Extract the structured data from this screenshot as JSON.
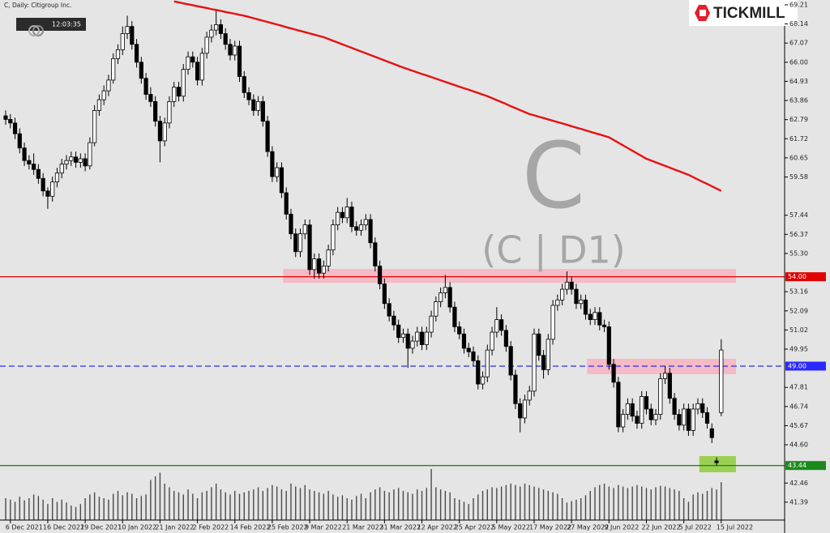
{
  "header": {
    "symbol_line": "C, Daily:  Citigroup Inc.",
    "clock": "12:03:35",
    "logo": "TICKMILL"
  },
  "watermark": {
    "symbol": "C",
    "timeframe": "(C | D1)"
  },
  "chart_data": {
    "type": "candlestick",
    "categories": [
      null,
      "6 Dec 2021",
      null,
      null,
      null,
      null,
      null,
      null,
      null,
      "16 Dec 2021",
      null,
      null,
      null,
      null,
      null,
      null,
      null,
      "29 Dec 2021",
      null,
      null,
      null,
      null,
      null,
      null,
      null,
      "10 Jan 2022",
      null,
      null,
      null,
      null,
      null,
      null,
      null,
      "21 Jan 2022",
      null,
      null,
      null,
      null,
      null,
      null,
      null,
      "2 Feb 2022",
      null,
      null,
      null,
      null,
      null,
      null,
      null,
      "14 Feb 2022",
      null,
      null,
      null,
      null,
      null,
      null,
      null,
      "25 Feb 2022",
      null,
      null,
      null,
      null,
      null,
      null,
      null,
      "9 Mar 2022",
      null,
      null,
      null,
      null,
      null,
      null,
      null,
      "21 Mar 2022",
      null,
      null,
      null,
      null,
      null,
      null,
      null,
      "31 Mar 2022",
      null,
      null,
      null,
      null,
      null,
      null,
      null,
      "12 Apr 2022",
      null,
      null,
      null,
      null,
      null,
      null,
      null,
      "25 Apr 2022",
      null,
      null,
      null,
      null,
      null,
      null,
      null,
      "5 May 2022",
      null,
      null,
      null,
      null,
      null,
      null,
      null,
      "17 May 2022",
      null,
      null,
      null,
      null,
      null,
      null,
      null,
      "27 May 2022",
      null,
      null,
      null,
      null,
      null,
      null,
      null,
      "9 Jun 2022",
      null,
      null,
      null,
      null,
      null,
      null,
      null,
      "22 Jun 2022",
      null,
      null,
      null,
      null,
      null,
      null,
      null,
      "5 Jul 2022",
      null,
      null,
      null,
      null,
      null,
      null,
      null,
      "15 Jul 2022"
    ],
    "candles": [
      [
        63.0,
        63.3,
        62.5,
        62.8
      ],
      [
        62.8,
        63.1,
        62.3,
        62.6
      ],
      [
        62.6,
        62.9,
        61.7,
        62.0
      ],
      [
        62.0,
        62.3,
        60.9,
        61.2
      ],
      [
        61.2,
        61.5,
        60.2,
        60.5
      ],
      [
        60.5,
        60.8,
        60.0,
        60.3
      ],
      [
        60.3,
        60.9,
        59.7,
        60.0
      ],
      [
        60.0,
        60.3,
        59.2,
        59.5
      ],
      [
        59.5,
        59.8,
        58.5,
        58.8
      ],
      [
        58.8,
        59.0,
        57.8,
        58.5
      ],
      [
        58.5,
        59.6,
        58.2,
        59.3
      ],
      [
        59.3,
        60.1,
        59.0,
        59.8
      ],
      [
        59.8,
        60.6,
        59.5,
        60.3
      ],
      [
        60.3,
        60.8,
        60.0,
        60.5
      ],
      [
        60.5,
        61.0,
        60.2,
        60.7
      ],
      [
        60.7,
        61.0,
        60.1,
        60.4
      ],
      [
        60.4,
        60.9,
        60.1,
        60.6
      ],
      [
        60.6,
        60.9,
        59.9,
        60.2
      ],
      [
        60.2,
        61.8,
        60.0,
        61.5
      ],
      [
        61.5,
        63.6,
        61.3,
        63.3
      ],
      [
        63.3,
        64.2,
        63.0,
        63.9
      ],
      [
        63.9,
        64.7,
        63.6,
        64.4
      ],
      [
        64.4,
        65.3,
        64.1,
        65.0
      ],
      [
        65.0,
        66.5,
        64.8,
        66.2
      ],
      [
        66.2,
        67.0,
        65.9,
        66.7
      ],
      [
        66.7,
        68.0,
        66.4,
        67.6
      ],
      [
        67.6,
        68.6,
        67.3,
        68.0
      ],
      [
        68.0,
        68.3,
        66.7,
        67.0
      ],
      [
        67.0,
        67.3,
        65.7,
        66.0
      ],
      [
        66.0,
        66.3,
        64.8,
        65.1
      ],
      [
        65.1,
        65.4,
        63.9,
        64.2
      ],
      [
        64.2,
        64.6,
        63.5,
        63.8
      ],
      [
        63.8,
        64.1,
        62.4,
        62.7
      ],
      [
        62.7,
        63.0,
        60.4,
        61.6
      ],
      [
        61.6,
        62.9,
        61.3,
        62.6
      ],
      [
        62.6,
        64.1,
        62.3,
        63.8
      ],
      [
        63.8,
        64.9,
        63.5,
        64.6
      ],
      [
        64.6,
        64.9,
        63.8,
        64.1
      ],
      [
        64.1,
        65.9,
        63.8,
        65.6
      ],
      [
        65.6,
        66.6,
        65.3,
        66.3
      ],
      [
        66.3,
        66.6,
        65.7,
        66.0
      ],
      [
        66.0,
        66.3,
        64.7,
        65.0
      ],
      [
        65.0,
        66.8,
        64.7,
        66.5
      ],
      [
        66.5,
        67.7,
        66.2,
        67.4
      ],
      [
        67.4,
        68.1,
        67.1,
        67.8
      ],
      [
        67.8,
        68.9,
        67.5,
        68.1
      ],
      [
        68.1,
        68.4,
        67.3,
        67.6
      ],
      [
        67.6,
        67.9,
        66.7,
        67.0
      ],
      [
        67.0,
        67.3,
        66.1,
        66.4
      ],
      [
        66.4,
        67.2,
        66.1,
        66.9
      ],
      [
        66.9,
        67.2,
        64.9,
        65.2
      ],
      [
        65.2,
        65.5,
        64.0,
        64.3
      ],
      [
        64.3,
        64.6,
        63.6,
        63.9
      ],
      [
        63.9,
        64.2,
        63.0,
        63.3
      ],
      [
        63.3,
        64.1,
        63.0,
        63.8
      ],
      [
        63.8,
        64.1,
        62.4,
        62.7
      ],
      [
        62.7,
        63.0,
        60.7,
        61.0
      ],
      [
        61.0,
        61.3,
        59.3,
        59.6
      ],
      [
        59.6,
        60.4,
        59.3,
        60.1
      ],
      [
        60.1,
        60.4,
        58.4,
        58.7
      ],
      [
        58.7,
        59.0,
        57.2,
        57.5
      ],
      [
        57.5,
        57.8,
        56.1,
        56.4
      ],
      [
        56.4,
        56.7,
        55.1,
        55.4
      ],
      [
        55.4,
        56.7,
        55.1,
        56.4
      ],
      [
        56.4,
        57.2,
        56.1,
        56.9
      ],
      [
        56.9,
        57.2,
        54.1,
        54.4
      ],
      [
        54.4,
        55.3,
        53.9,
        55.0
      ],
      [
        55.0,
        55.3,
        53.9,
        54.2
      ],
      [
        54.2,
        54.9,
        53.9,
        54.6
      ],
      [
        54.6,
        55.8,
        54.3,
        55.5
      ],
      [
        55.5,
        57.2,
        55.2,
        56.9
      ],
      [
        56.9,
        57.9,
        56.6,
        57.6
      ],
      [
        57.6,
        57.9,
        57.0,
        57.3
      ],
      [
        57.3,
        58.4,
        57.0,
        57.9
      ],
      [
        57.9,
        58.2,
        56.5,
        56.8
      ],
      [
        56.8,
        57.1,
        56.3,
        56.6
      ],
      [
        56.6,
        57.2,
        56.3,
        56.9
      ],
      [
        56.9,
        57.5,
        56.6,
        57.2
      ],
      [
        57.2,
        57.5,
        55.6,
        55.9
      ],
      [
        55.9,
        56.2,
        54.3,
        54.6
      ],
      [
        54.6,
        54.9,
        53.3,
        53.6
      ],
      [
        53.6,
        53.9,
        52.2,
        52.5
      ],
      [
        52.5,
        52.8,
        51.5,
        51.8
      ],
      [
        51.8,
        52.1,
        51.0,
        51.3
      ],
      [
        51.3,
        51.6,
        50.3,
        50.6
      ],
      [
        50.6,
        51.1,
        50.3,
        50.8
      ],
      [
        50.8,
        51.1,
        48.9,
        50.0
      ],
      [
        50.0,
        50.7,
        49.7,
        50.4
      ],
      [
        50.4,
        51.2,
        50.1,
        50.9
      ],
      [
        50.9,
        51.2,
        49.9,
        50.2
      ],
      [
        50.2,
        51.2,
        49.9,
        50.9
      ],
      [
        50.9,
        52.1,
        50.6,
        51.8
      ],
      [
        51.8,
        52.9,
        51.5,
        52.6
      ],
      [
        52.6,
        53.4,
        52.3,
        53.1
      ],
      [
        53.1,
        54.1,
        52.8,
        53.4
      ],
      [
        53.4,
        53.7,
        52.0,
        52.3
      ],
      [
        52.3,
        52.6,
        50.9,
        51.2
      ],
      [
        51.2,
        51.5,
        50.5,
        50.8
      ],
      [
        50.8,
        51.1,
        49.7,
        50.0
      ],
      [
        50.0,
        50.3,
        49.5,
        49.8
      ],
      [
        49.8,
        50.1,
        49.0,
        49.3
      ],
      [
        49.3,
        49.6,
        47.7,
        48.0
      ],
      [
        48.0,
        48.7,
        47.7,
        48.4
      ],
      [
        48.4,
        50.2,
        48.1,
        49.9
      ],
      [
        49.9,
        51.2,
        49.6,
        50.9
      ],
      [
        50.9,
        52.3,
        50.6,
        51.6
      ],
      [
        51.6,
        51.9,
        50.7,
        51.0
      ],
      [
        51.0,
        51.3,
        49.8,
        50.1
      ],
      [
        50.1,
        50.4,
        48.2,
        48.5
      ],
      [
        48.5,
        48.8,
        46.6,
        46.9
      ],
      [
        46.9,
        47.2,
        45.3,
        46.1
      ],
      [
        46.1,
        47.4,
        45.8,
        47.1
      ],
      [
        47.1,
        47.9,
        46.8,
        47.6
      ],
      [
        47.6,
        51.1,
        47.3,
        50.8
      ],
      [
        50.8,
        51.1,
        49.3,
        49.6
      ],
      [
        49.6,
        49.9,
        48.3,
        48.8
      ],
      [
        48.8,
        50.8,
        48.5,
        50.5
      ],
      [
        50.5,
        52.7,
        50.2,
        52.4
      ],
      [
        52.4,
        53.0,
        52.1,
        52.7
      ],
      [
        52.7,
        53.6,
        52.4,
        53.3
      ],
      [
        53.3,
        54.3,
        53.0,
        53.7
      ],
      [
        53.7,
        54.0,
        53.0,
        53.3
      ],
      [
        53.3,
        53.6,
        52.2,
        52.5
      ],
      [
        52.5,
        53.0,
        52.2,
        52.7
      ],
      [
        52.7,
        53.0,
        51.6,
        51.9
      ],
      [
        51.9,
        52.2,
        51.3,
        51.6
      ],
      [
        51.6,
        52.3,
        51.3,
        52.0
      ],
      [
        52.0,
        52.3,
        51.0,
        51.3
      ],
      [
        51.3,
        51.6,
        50.9,
        51.2
      ],
      [
        51.2,
        51.5,
        48.8,
        49.1
      ],
      [
        49.1,
        49.4,
        47.8,
        48.1
      ],
      [
        48.1,
        48.4,
        45.3,
        45.6
      ],
      [
        45.6,
        46.6,
        45.3,
        46.3
      ],
      [
        46.3,
        47.2,
        46.0,
        46.9
      ],
      [
        46.9,
        47.2,
        45.9,
        46.2
      ],
      [
        46.2,
        46.5,
        45.5,
        45.8
      ],
      [
        45.8,
        47.6,
        45.5,
        47.3
      ],
      [
        47.3,
        47.6,
        46.3,
        46.6
      ],
      [
        46.6,
        46.9,
        45.7,
        46.0
      ],
      [
        46.0,
        46.6,
        45.7,
        46.3
      ],
      [
        46.3,
        48.6,
        46.0,
        48.3
      ],
      [
        48.3,
        49.0,
        48.0,
        48.6
      ],
      [
        48.6,
        48.9,
        46.9,
        47.2
      ],
      [
        47.2,
        47.5,
        46.0,
        46.3
      ],
      [
        46.3,
        46.6,
        45.4,
        45.7
      ],
      [
        45.7,
        46.9,
        45.4,
        46.6
      ],
      [
        46.6,
        46.9,
        45.1,
        45.4
      ],
      [
        45.4,
        46.9,
        45.1,
        46.6
      ],
      [
        46.6,
        47.2,
        46.3,
        46.9
      ],
      [
        46.9,
        47.2,
        46.1,
        46.4
      ],
      [
        46.4,
        46.7,
        45.5,
        45.8
      ],
      [
        45.5,
        45.8,
        44.7,
        45.0
      ],
      [
        43.7,
        43.9,
        43.44,
        43.6
      ],
      [
        46.4,
        50.5,
        46.2,
        49.9
      ]
    ],
    "volume": [
      30,
      28,
      25,
      32,
      27,
      30,
      35,
      33,
      28,
      22,
      30,
      25,
      28,
      24,
      20,
      18,
      22,
      30,
      35,
      38,
      32,
      30,
      28,
      36,
      40,
      34,
      38,
      36,
      30,
      33,
      35,
      55,
      60,
      65,
      50,
      45,
      40,
      38,
      35,
      42,
      36,
      30,
      38,
      40,
      45,
      50,
      42,
      38,
      35,
      40,
      36,
      38,
      40,
      42,
      45,
      40,
      44,
      48,
      46,
      42,
      40,
      50,
      46,
      44,
      48,
      42,
      40,
      38,
      36,
      40,
      35,
      32,
      34,
      30,
      28,
      33,
      36,
      30,
      38,
      42,
      45,
      40,
      38,
      42,
      44,
      40,
      38,
      36,
      42,
      40,
      44,
      70,
      45,
      42,
      40,
      38,
      30,
      28,
      25,
      22,
      30,
      35,
      40,
      42,
      45,
      44,
      46,
      48,
      50,
      48,
      46,
      50,
      48,
      46,
      44,
      42,
      40,
      38,
      36,
      30,
      24,
      26,
      28,
      30,
      34,
      40,
      45,
      48,
      50,
      46,
      44,
      48,
      46,
      44,
      46,
      48,
      46,
      44,
      42,
      45,
      47,
      46,
      44,
      42,
      40,
      30,
      25,
      35,
      38,
      36,
      40,
      44,
      42,
      52
    ],
    "ma": {
      "color": "#e81010",
      "values": [
        null,
        null,
        null,
        null,
        null,
        null,
        null,
        null,
        null,
        null,
        null,
        null,
        null,
        null,
        null,
        null,
        null,
        null,
        null,
        null,
        null,
        null,
        null,
        null,
        null,
        null,
        null,
        null,
        null,
        null,
        null,
        null,
        null,
        null,
        null,
        null,
        69.4,
        69.35,
        69.29,
        69.24,
        69.19,
        69.13,
        69.08,
        69.03,
        68.97,
        68.92,
        68.87,
        68.81,
        68.76,
        68.71,
        68.65,
        68.6,
        68.53,
        68.46,
        68.39,
        68.32,
        68.25,
        68.18,
        68.11,
        68.04,
        67.96,
        67.89,
        67.82,
        67.75,
        67.68,
        67.61,
        67.54,
        67.47,
        67.4,
        67.3,
        67.2,
        67.1,
        67.0,
        66.9,
        66.8,
        66.7,
        66.6,
        66.5,
        66.4,
        66.3,
        66.2,
        66.1,
        66.0,
        65.9,
        65.8,
        65.7,
        65.61,
        65.52,
        65.43,
        65.34,
        65.26,
        65.17,
        65.08,
        64.99,
        64.9,
        64.81,
        64.72,
        64.63,
        64.54,
        64.46,
        64.37,
        64.28,
        64.19,
        64.1,
        63.99,
        63.88,
        63.77,
        63.66,
        63.54,
        63.43,
        63.32,
        63.21,
        63.1,
        63.03,
        62.95,
        62.88,
        62.8,
        62.73,
        62.65,
        62.58,
        62.5,
        62.42,
        62.34,
        62.27,
        62.19,
        62.11,
        62.03,
        61.96,
        61.88,
        61.8,
        61.65,
        61.5,
        61.35,
        61.2,
        61.05,
        60.9,
        60.75,
        60.6,
        60.5,
        60.4,
        60.3,
        60.2,
        60.1,
        60.0,
        59.9,
        59.8,
        59.7,
        59.57,
        59.44,
        59.31,
        59.19,
        59.06,
        58.93,
        58.8
      ]
    },
    "ylim": [
      40.39,
      69.48
    ],
    "yticks": [
      69.21,
      68.14,
      67.07,
      {
        "value": 66,
        "label": "66.00"
      },
      64.93,
      63.86,
      62.79,
      61.72,
      60.65,
      59.58,
      57.44,
      56.37,
      {
        "value": 55.3,
        "label": "55.30"
      },
      53.16,
      52.09,
      51.02,
      49.95,
      47.81,
      46.74,
      45.67,
      {
        "value": 44.6,
        "label": "44.60"
      },
      42.46,
      41.39
    ],
    "levels": [
      {
        "value": 54,
        "label": "54.00",
        "color": "#e00000",
        "style": "solid"
      },
      {
        "value": 49,
        "label": "49.00",
        "color": "#2a2aff",
        "style": "dashed"
      },
      {
        "value": 43.44,
        "color": "#1a8a1a",
        "style": "solid"
      }
    ],
    "zones": [
      {
        "low": 53.66,
        "high": 54.43,
        "color": "#f7b3c0"
      },
      {
        "low": 48.55,
        "high": 49.41,
        "color": "#f7b3c0"
      },
      {
        "low": 43.06,
        "high": 43.97,
        "color": "#8fcc3c"
      }
    ],
    "colors": {
      "background": "#e5e5e5",
      "up": "#ffffff",
      "down": "#000000",
      "outline": "#000000",
      "volume": "#4a4a4a"
    }
  }
}
